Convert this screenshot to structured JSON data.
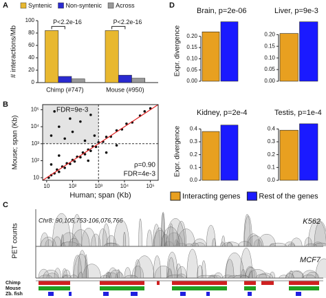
{
  "panel_labels": [
    "A",
    "B",
    "C",
    "D"
  ],
  "chart_data": [
    {
      "type": "grouped-bar",
      "ylabel": "# interactions/Mb",
      "categories": [
        "Chimp (#747)",
        "Mouse (#950)"
      ],
      "series": [
        {
          "name": "Syntenic",
          "color": "#e8b830",
          "values": [
            84,
            84
          ]
        },
        {
          "name": "Non-syntenic",
          "color": "#2a2ad0",
          "values": [
            10,
            12
          ]
        },
        {
          "name": "Across",
          "color": "#9a9a9a",
          "values": [
            6,
            7
          ]
        }
      ],
      "annotations": [
        "P<2.2e-16",
        "P<2.2e-16"
      ],
      "ylim": [
        0,
        100
      ],
      "yticks": [
        0,
        20,
        40,
        60,
        80,
        100
      ]
    },
    {
      "type": "scatter",
      "xlabel": "Human; span (Kb)",
      "ylabel": "Mouse; span (Kb)",
      "log": true,
      "annotations": [
        "FDR=9e-3",
        "ρ=0.90",
        "FDR=4e-3"
      ],
      "quadrant_lines": [
        1000,
        1000
      ],
      "color": "#111111",
      "fit_color": "#e02020",
      "x": [
        12,
        15,
        20,
        25,
        30,
        40,
        50,
        60,
        80,
        100,
        120,
        150,
        200,
        250,
        300,
        400,
        500,
        600,
        800,
        1000,
        1500,
        2000,
        3000,
        5000,
        8000,
        12000,
        20000,
        40000,
        60000,
        100000,
        15,
        30,
        50,
        100,
        200,
        300,
        500,
        20,
        80,
        700,
        2000,
        5000,
        400,
        30,
        15
      ],
      "y": [
        10,
        14,
        18,
        30,
        22,
        45,
        38,
        70,
        65,
        110,
        90,
        170,
        160,
        300,
        240,
        450,
        380,
        700,
        650,
        1200,
        1300,
        2500,
        2600,
        6000,
        7000,
        15000,
        18000,
        45000,
        80000,
        120000,
        3000,
        10000,
        2000,
        5000,
        20000,
        1500,
        50000,
        80000,
        30000,
        3000,
        300,
        800,
        100,
        200,
        60
      ],
      "xlim": [
        7,
        200000
      ],
      "ylim": [
        7,
        200000
      ],
      "xticks": [
        {
          "value": 10,
          "label": "10"
        },
        {
          "value": 100,
          "label": "10²"
        },
        {
          "value": 1000,
          "label": "10³"
        },
        {
          "value": 10000,
          "label": "10⁴"
        },
        {
          "value": 100000,
          "label": "10⁵"
        }
      ],
      "yticks": [
        {
          "value": 10,
          "label": "10"
        },
        {
          "value": 100,
          "label": "10²"
        },
        {
          "value": 1000,
          "label": "10³"
        },
        {
          "value": 10000,
          "label": "10⁴"
        },
        {
          "value": 100000,
          "label": "10⁵"
        }
      ]
    },
    {
      "type": "bar",
      "title": "Brain, p=2e-06",
      "ylabel": "Expr. divergence",
      "values": [
        0.22,
        0.265
      ],
      "colors": [
        "#e8a020",
        "#1a1aff"
      ],
      "ylim": [
        0,
        0.27
      ],
      "yticks": [
        {
          "value": 0,
          "label": "0.00"
        },
        0.05,
        {
          "value": 0.1,
          "label": "0.10"
        },
        0.15,
        {
          "value": 0.2,
          "label": "0.20"
        }
      ]
    },
    {
      "type": "bar",
      "title": "Liver, p=9e-3",
      "values": [
        0.205,
        0.255
      ],
      "colors": [
        "#e8a020",
        "#1a1aff"
      ],
      "ylim": [
        0,
        0.26
      ],
      "yticks": [
        {
          "value": 0,
          "label": "0.00"
        },
        0.05,
        {
          "value": 0.1,
          "label": "0.10"
        },
        0.15,
        {
          "value": 0.2,
          "label": "0.20"
        }
      ]
    },
    {
      "type": "bar",
      "title": "Kidney, p=2e-4",
      "ylabel": "Expr. divergence",
      "values": [
        0.38,
        0.43
      ],
      "colors": [
        "#e8a020",
        "#1a1aff"
      ],
      "ylim": [
        0,
        0.45
      ],
      "yticks": [
        {
          "value": 0,
          "label": "0.0"
        },
        0.1,
        0.2,
        0.3,
        0.4
      ]
    },
    {
      "type": "bar",
      "title": "Testis, p=1e-4",
      "values": [
        0.39,
        0.44
      ],
      "colors": [
        "#e8a020",
        "#1a1aff"
      ],
      "ylim": [
        0,
        0.45
      ],
      "yticks": [
        {
          "value": 0,
          "label": "0.0"
        },
        0.1,
        0.2,
        0.3,
        0.4
      ]
    }
  ],
  "legend_d": [
    {
      "name": "Interacting genes",
      "color": "#e8a020"
    },
    {
      "name": "Rest of the genes",
      "color": "#1a1aff"
    }
  ],
  "panel_c": {
    "region": "Chr8: 90,105,753-106,076,766",
    "ylabel": "PET counts",
    "tracks": [
      "K562",
      "MCF7"
    ],
    "species": [
      {
        "name": "Chimp",
        "color": "#d02020"
      },
      {
        "name": "Mouse",
        "color": "#20a020"
      },
      {
        "name": "Zb. fish",
        "color": "#2020e0"
      }
    ]
  }
}
